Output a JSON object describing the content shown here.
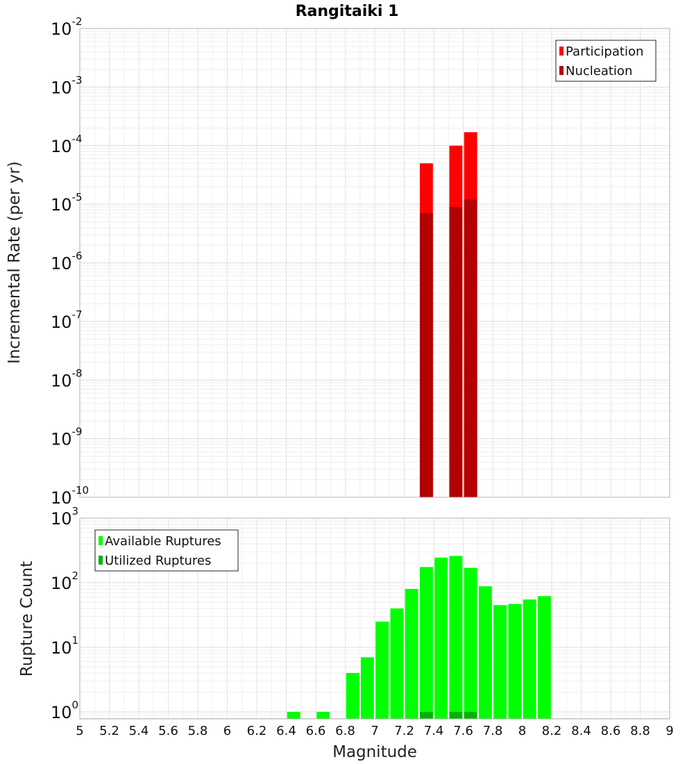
{
  "title": "Rangitaiki 1",
  "colors": {
    "participation": "#ff0000",
    "nucleation": "#b30000",
    "available": "#00ff00",
    "utilized": "#00b400",
    "grid": "#e6e6e6",
    "frame": "#b0b0b0"
  },
  "chart_data": [
    {
      "type": "bar",
      "ylabel": "Incremental Rate (per yr)",
      "xlabel": "",
      "xlim": [
        5,
        9
      ],
      "ylim": [
        1e-10,
        0.01
      ],
      "ylog": true,
      "grid": true,
      "legend_position": "top-right",
      "bin_width": 0.1,
      "x_ticks": [
        "5",
        "5.2",
        "5.4",
        "5.6",
        "5.8",
        "6",
        "6.2",
        "6.4",
        "6.6",
        "6.8",
        "7",
        "7.2",
        "7.4",
        "7.6",
        "7.8",
        "8",
        "8.2",
        "8.4",
        "8.6",
        "8.8",
        "9"
      ],
      "y_ticks": [
        {
          "base": "10",
          "exp": "-10",
          "value": 1e-10
        },
        {
          "base": "10",
          "exp": "-9",
          "value": 1e-09
        },
        {
          "base": "10",
          "exp": "-8",
          "value": 1e-08
        },
        {
          "base": "10",
          "exp": "-7",
          "value": 1e-07
        },
        {
          "base": "10",
          "exp": "-6",
          "value": 1e-06
        },
        {
          "base": "10",
          "exp": "-5",
          "value": 1e-05
        },
        {
          "base": "10",
          "exp": "-4",
          "value": 0.0001
        },
        {
          "base": "10",
          "exp": "-3",
          "value": 0.001
        },
        {
          "base": "10",
          "exp": "-2",
          "value": 0.01
        }
      ],
      "series": [
        {
          "name": "Participation",
          "color_key": "participation",
          "x": [
            7.35,
            7.55,
            7.65
          ],
          "values": [
            5e-05,
            0.0001,
            0.00017
          ]
        },
        {
          "name": "Nucleation",
          "color_key": "nucleation",
          "x": [
            7.35,
            7.55,
            7.65
          ],
          "values": [
            7e-06,
            9e-06,
            1.2e-05
          ]
        }
      ]
    },
    {
      "type": "bar",
      "ylabel": "Rupture Count",
      "xlabel": "Magnitude",
      "xlim": [
        5,
        9
      ],
      "ylim": [
        0.78,
        1000
      ],
      "ylog": true,
      "grid": true,
      "legend_position": "top-left",
      "bin_width": 0.1,
      "x_ticks": [
        "5",
        "5.2",
        "5.4",
        "5.6",
        "5.8",
        "6",
        "6.2",
        "6.4",
        "6.6",
        "6.8",
        "7",
        "7.2",
        "7.4",
        "7.6",
        "7.8",
        "8",
        "8.2",
        "8.4",
        "8.6",
        "8.8",
        "9"
      ],
      "y_ticks": [
        {
          "base": "10",
          "exp": "0",
          "value": 1
        },
        {
          "base": "10",
          "exp": "1",
          "value": 10
        },
        {
          "base": "10",
          "exp": "2",
          "value": 100
        },
        {
          "base": "10",
          "exp": "3",
          "value": 1000
        }
      ],
      "series": [
        {
          "name": "Available Ruptures",
          "color_key": "available",
          "x": [
            6.45,
            6.65,
            6.85,
            6.95,
            7.05,
            7.15,
            7.25,
            7.35,
            7.45,
            7.55,
            7.65,
            7.75,
            7.85,
            7.95,
            8.05,
            8.15
          ],
          "values": [
            1,
            1,
            4,
            7,
            25,
            40,
            80,
            175,
            245,
            260,
            170,
            88,
            45,
            47,
            55,
            62
          ]
        },
        {
          "name": "Utilized Ruptures",
          "color_key": "utilized",
          "x": [
            7.35,
            7.55,
            7.65
          ],
          "values": [
            1,
            1,
            1
          ]
        }
      ]
    }
  ]
}
